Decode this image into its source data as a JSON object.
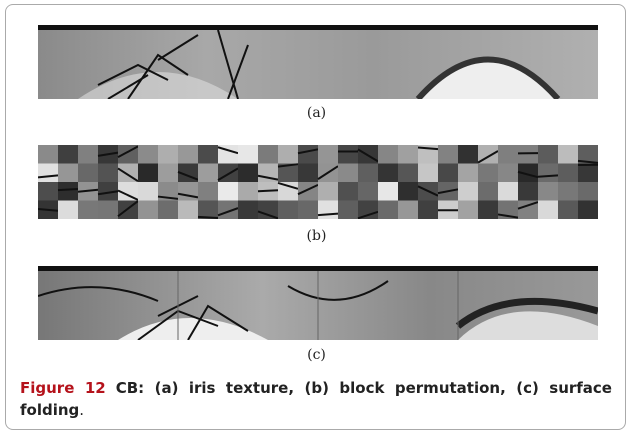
{
  "figure": {
    "panels": [
      {
        "label": "(a)"
      },
      {
        "label": "(b)"
      },
      {
        "label": "(c)"
      }
    ],
    "caption": {
      "label": "Figure 12",
      "text": "CB: (a) iris texture, (b) block permutation, (c) surface folding",
      "end": "."
    }
  }
}
